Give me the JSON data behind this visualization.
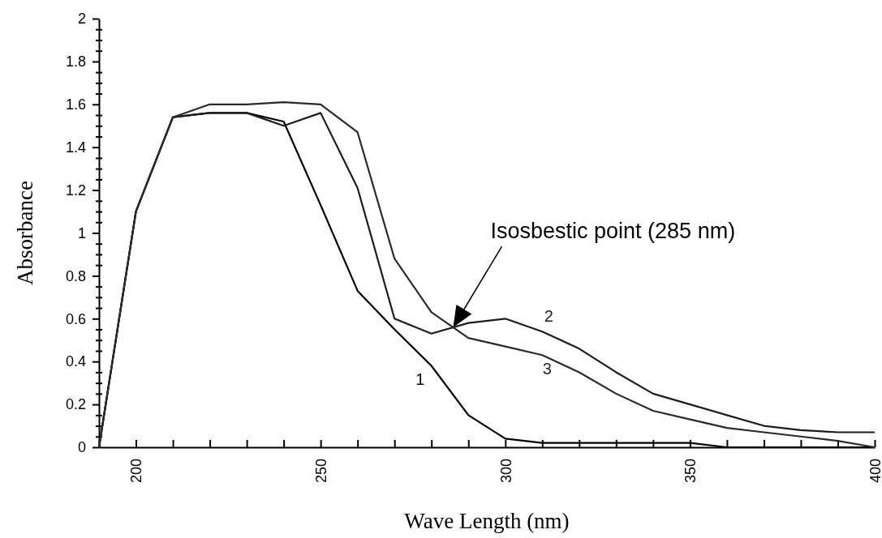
{
  "chart_data": {
    "type": "line",
    "xlabel": "Wave Length (nm)",
    "ylabel": "Absorbance",
    "x": [
      190,
      200,
      210,
      220,
      230,
      240,
      250,
      260,
      270,
      280,
      290,
      300,
      310,
      320,
      330,
      340,
      350,
      360,
      370,
      380,
      390,
      400
    ],
    "series": [
      {
        "name": "1",
        "color": "#000000",
        "values": [
          0,
          1.1,
          1.54,
          1.56,
          1.56,
          1.52,
          1.13,
          0.73,
          0.55,
          0.38,
          0.15,
          0.04,
          0.02,
          0.02,
          0.02,
          0.02,
          0.02,
          0,
          0,
          0,
          0,
          0
        ]
      },
      {
        "name": "2",
        "color": "#1c1c1c",
        "values": [
          0,
          1.1,
          1.54,
          1.56,
          1.56,
          1.5,
          1.56,
          1.21,
          0.6,
          0.53,
          0.58,
          0.6,
          0.54,
          0.46,
          0.35,
          0.25,
          0.2,
          0.15,
          0.1,
          0.08,
          0.07,
          0.07
        ]
      },
      {
        "name": "3",
        "color": "#2a2a2a",
        "values": [
          0,
          1.1,
          1.54,
          1.6,
          1.6,
          1.61,
          1.6,
          1.47,
          0.88,
          0.63,
          0.51,
          0.47,
          0.43,
          0.35,
          0.25,
          0.17,
          0.13,
          0.09,
          0.07,
          0.05,
          0.03,
          0
        ]
      }
    ],
    "xlim": [
      190,
      400
    ],
    "xticks": [
      {
        "value": 190,
        "label": null
      },
      200,
      {
        "value": 210,
        "label": null
      },
      {
        "value": 220,
        "label": null
      },
      {
        "value": 230,
        "label": null
      },
      {
        "value": 240,
        "label": null
      },
      250,
      {
        "value": 260,
        "label": null
      },
      {
        "value": 270,
        "label": null
      },
      {
        "value": 280,
        "label": null
      },
      {
        "value": 290,
        "label": null
      },
      300,
      {
        "value": 310,
        "label": null
      },
      {
        "value": 320,
        "label": null
      },
      {
        "value": 330,
        "label": null
      },
      {
        "value": 340,
        "label": null
      },
      350,
      {
        "value": 360,
        "label": null
      },
      {
        "value": 370,
        "label": null
      },
      {
        "value": 380,
        "label": null
      },
      {
        "value": 390,
        "label": null
      },
      400
    ],
    "ylim": [
      0,
      2
    ],
    "yticks": [
      0,
      {
        "value": 0.05,
        "label": null
      },
      {
        "value": 0.1,
        "label": null
      },
      {
        "value": 0.15,
        "label": null
      },
      0.2,
      {
        "value": 0.25,
        "label": null
      },
      {
        "value": 0.3,
        "label": null
      },
      {
        "value": 0.35,
        "label": null
      },
      0.4,
      {
        "value": 0.45,
        "label": null
      },
      {
        "value": 0.5,
        "label": null
      },
      {
        "value": 0.55,
        "label": null
      },
      0.6,
      {
        "value": 0.65,
        "label": null
      },
      {
        "value": 0.7,
        "label": null
      },
      {
        "value": 0.75,
        "label": null
      },
      0.8,
      {
        "value": 0.85,
        "label": null
      },
      {
        "value": 0.9,
        "label": null
      },
      {
        "value": 0.95,
        "label": null
      },
      1,
      {
        "value": 1.05,
        "label": null
      },
      {
        "value": 1.1,
        "label": null
      },
      {
        "value": 1.15,
        "label": null
      },
      1.2,
      {
        "value": 1.25,
        "label": null
      },
      {
        "value": 1.3,
        "label": null
      },
      {
        "value": 1.35,
        "label": null
      },
      1.4,
      {
        "value": 1.45,
        "label": null
      },
      {
        "value": 1.5,
        "label": null
      },
      {
        "value": 1.55,
        "label": null
      },
      1.6,
      {
        "value": 1.65,
        "label": null
      },
      {
        "value": 1.7,
        "label": null
      },
      {
        "value": 1.75,
        "label": null
      },
      1.8,
      {
        "value": 1.85,
        "label": null
      },
      {
        "value": 1.9,
        "label": null
      },
      {
        "value": 1.95,
        "label": null
      },
      2
    ],
    "annotations": [
      "Isosbestic point (285 nm)"
    ],
    "marker": "none",
    "line_style": "solid",
    "grid": false,
    "legend": false
  }
}
